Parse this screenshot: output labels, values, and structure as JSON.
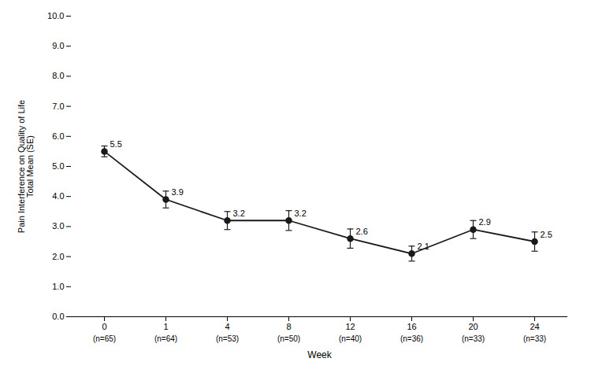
{
  "chart_data": {
    "type": "line",
    "xlabel": "Week",
    "ylabel": "Pain Interference on Quality of Life\nTotal Mean (SE)",
    "categories": [
      "0",
      "1",
      "4",
      "8",
      "12",
      "16",
      "20",
      "24"
    ],
    "n_labels": [
      "(n=65)",
      "(n=64)",
      "(n=53)",
      "(n=50)",
      "(n=40)",
      "(n=36)",
      "(n=33)",
      "(n=33)"
    ],
    "values": [
      5.5,
      3.9,
      3.2,
      3.2,
      2.6,
      2.1,
      2.9,
      2.5
    ],
    "errors": [
      0.18,
      0.28,
      0.3,
      0.33,
      0.32,
      0.25,
      0.3,
      0.32
    ],
    "ylim": [
      0.0,
      10.0
    ],
    "yticks": [
      {
        "value": 0,
        "label": "0.0"
      },
      {
        "value": 1,
        "label": "1.0"
      },
      {
        "value": 2,
        "label": "2.0"
      },
      {
        "value": 3,
        "label": "3.0"
      },
      {
        "value": 4,
        "label": "4.0"
      },
      {
        "value": 5,
        "label": "5.0"
      },
      {
        "value": 6,
        "label": "6.0"
      },
      {
        "value": 7,
        "label": "7.0"
      },
      {
        "value": 8,
        "label": "8.0"
      },
      {
        "value": 9,
        "label": "9.0"
      },
      {
        "value": 10,
        "label": "10.0"
      }
    ],
    "color": "#1a1a1a",
    "marker": "o",
    "data_labels": true,
    "grid": false
  }
}
